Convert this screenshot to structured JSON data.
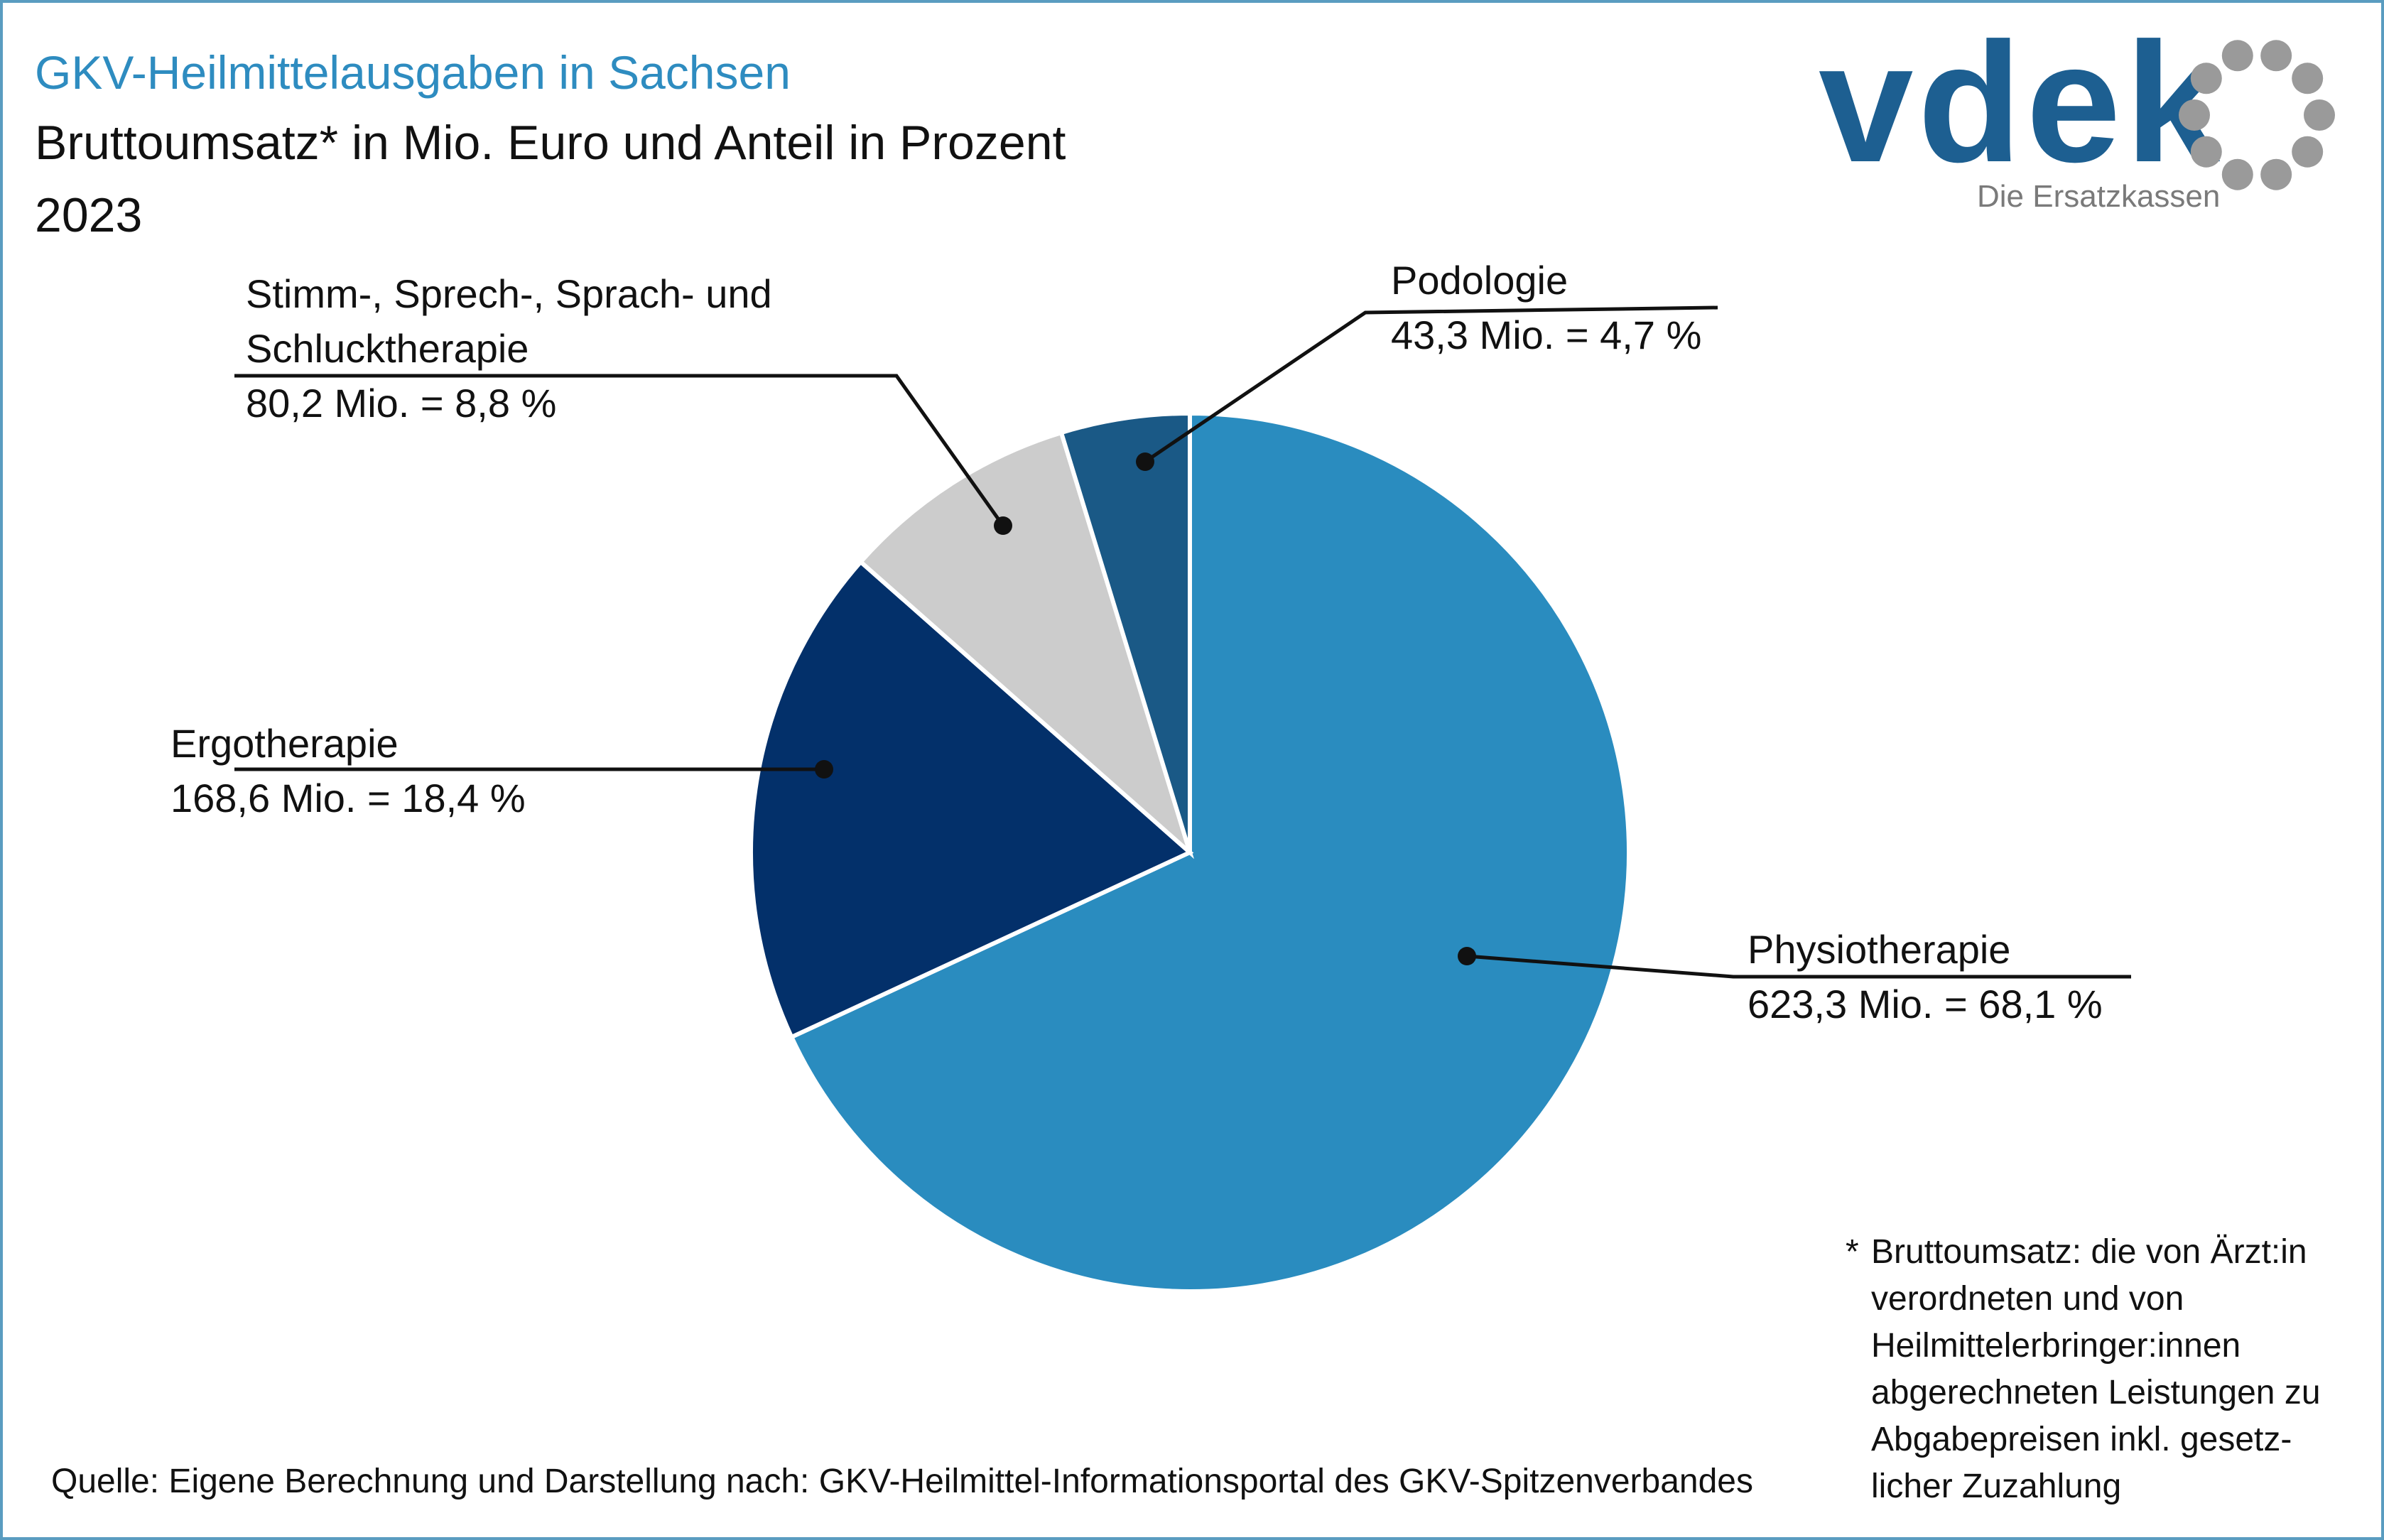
{
  "header": {
    "title": "GKV-Heilmittelausgaben in Sachsen",
    "subtitle": "Bruttoumsatz* in Mio. Euro und Anteil in Prozent",
    "year": "2023"
  },
  "logo": {
    "word": "vdek",
    "tagline": "Die Ersatzkassen",
    "icon": "vdek-dot-ring-icon",
    "colors": {
      "word": "#1d5f91",
      "ring": "#9a9a9a"
    }
  },
  "chart_data": {
    "type": "pie",
    "categories": [
      "Physiotherapie",
      "Ergotherapie",
      "Stimm-, Sprech-, Sprach- und Schlucktherapie",
      "Podologie"
    ],
    "values": [
      623.3,
      168.6,
      80.2,
      43.3
    ],
    "percentages": [
      68.1,
      18.4,
      8.8,
      4.7
    ],
    "colors": [
      "#2a8cbf",
      "#03306a",
      "#cccccc",
      "#1a5986"
    ],
    "labels": [
      {
        "name_lines": [
          "Physiotherapie"
        ],
        "value_text": "623,3 Mio. = 68,1 %"
      },
      {
        "name_lines": [
          "Ergotherapie"
        ],
        "value_text": "168,6 Mio. = 18,4 %"
      },
      {
        "name_lines": [
          "Stimm-, Sprech-, Sprach- und",
          "Schlucktherapie"
        ],
        "value_text": "80,2 Mio. = 8,8 %"
      },
      {
        "name_lines": [
          "Podologie"
        ],
        "value_text": "43,3 Mio. = 4,7 %"
      }
    ],
    "start": "12 o'clock",
    "direction": "clockwise"
  },
  "footnote": {
    "marker": "*",
    "text": "Bruttoumsatz: die von Ärzt:in verordneten und von Heilmittelerbringer:innen abgerechneten Leistungen zu Abgabepreisen inkl. gesetz-licher Zuzahlung"
  },
  "source": "Quelle: Eigene Berechnung und Darstellung nach: GKV-Heilmittel-Informationsportal des GKV-Spitzenverbandes"
}
